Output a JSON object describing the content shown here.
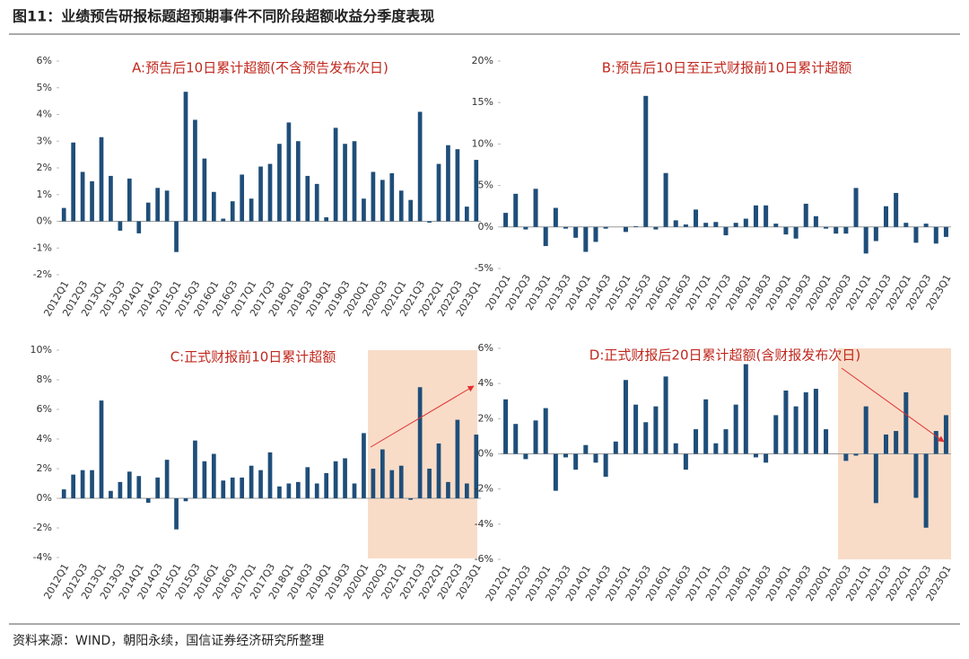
{
  "title": "图11：业绩预告研报标题超预期事件不同阶段超额收益分季度表现",
  "source": "资料来源：WIND，朝阳永续，国信证券经济研究所整理",
  "chart_data": [
    {
      "type": "bar",
      "title": "A:预告后10日累计超额(不含预告发布次日)",
      "color": "#1f4e79",
      "categories": [
        "2012Q1",
        null,
        "2012Q3",
        null,
        "2013Q1",
        null,
        "2013Q3",
        null,
        "2014Q1",
        null,
        "2014Q3",
        null,
        "2015Q1",
        null,
        "2015Q3",
        null,
        "2016Q1",
        null,
        "2016Q3",
        null,
        "2017Q1",
        null,
        "2017Q3",
        null,
        "2018Q1",
        null,
        "2018Q3",
        null,
        "2019Q1",
        null,
        "2019Q3",
        null,
        "2020Q1",
        null,
        "2020Q3",
        null,
        "2021Q1",
        null,
        "2021Q3",
        null,
        "2022Q1",
        null,
        "2022Q3",
        null,
        "2023Q1"
      ],
      "values": [
        0.5,
        2.95,
        1.85,
        1.5,
        3.15,
        1.7,
        -0.35,
        1.6,
        -0.45,
        0.7,
        1.25,
        1.15,
        -1.15,
        4.85,
        3.8,
        2.35,
        1.1,
        0.1,
        0.75,
        1.75,
        0.85,
        2.05,
        2.15,
        2.9,
        3.7,
        3.0,
        1.7,
        1.4,
        0.15,
        3.5,
        2.9,
        3.0,
        0.85,
        1.85,
        1.55,
        1.8,
        1.15,
        0.8,
        4.1,
        -0.05,
        2.15,
        2.85,
        2.7,
        0.55,
        2.3
      ],
      "ylim": [
        -2,
        6
      ],
      "yticks": [
        {
          "value": -2,
          "label": "-2%"
        },
        {
          "value": -1,
          "label": "-1%"
        },
        {
          "value": 0,
          "label": "0%"
        },
        {
          "value": 1,
          "label": "1%"
        },
        {
          "value": 2,
          "label": "2%"
        },
        {
          "value": 3,
          "label": "3%"
        },
        {
          "value": 4,
          "label": "4%"
        },
        {
          "value": 5,
          "label": "5%"
        },
        {
          "value": 6,
          "label": "6%"
        }
      ]
    },
    {
      "type": "bar",
      "title": "B:预告后10日至正式财报前10日累计超额",
      "color": "#1f4e79",
      "categories": [
        "2012Q1",
        null,
        "2012Q3",
        null,
        "2013Q1",
        null,
        "2013Q3",
        null,
        "2014Q1",
        null,
        "2014Q3",
        null,
        "2015Q1",
        null,
        "2015Q3",
        null,
        "2016Q1",
        null,
        "2016Q3",
        null,
        "2017Q1",
        null,
        "2017Q3",
        null,
        "2018Q1",
        null,
        "2018Q3",
        null,
        "2019Q1",
        null,
        "2019Q3",
        null,
        "2020Q1",
        null,
        "2020Q3",
        null,
        "2021Q1",
        null,
        "2021Q3",
        null,
        "2022Q1",
        null,
        "2022Q3",
        null,
        "2023Q1"
      ],
      "values": [
        1.7,
        4.0,
        -0.3,
        4.6,
        -2.3,
        2.3,
        -0.2,
        -1.3,
        -3.0,
        -1.8,
        -0.2,
        0,
        -0.6,
        0.1,
        15.8,
        -0.3,
        6.5,
        0.8,
        0.3,
        2.1,
        0.5,
        0.6,
        -1.0,
        0.5,
        1.0,
        2.6,
        2.6,
        0.4,
        -0.9,
        -1.4,
        2.8,
        1.3,
        -0.2,
        -0.8,
        -0.8,
        4.7,
        -3.2,
        -1.7,
        2.5,
        4.1,
        0.5,
        -1.9,
        0.4,
        -2.0,
        -1.2
      ],
      "ylim": [
        -5,
        20
      ],
      "yticks": [
        {
          "value": -5,
          "label": "-5%"
        },
        {
          "value": 0,
          "label": "0%"
        },
        {
          "value": 5,
          "label": "5%"
        },
        {
          "value": 10,
          "label": "10%"
        },
        {
          "value": 15,
          "label": "15%"
        },
        {
          "value": 20,
          "label": "20%"
        }
      ]
    },
    {
      "type": "bar",
      "title": "C:正式财报前10日累计超额",
      "color": "#1f4e79",
      "categories": [
        "2012Q1",
        null,
        "2012Q3",
        null,
        "2013Q1",
        null,
        "2013Q3",
        null,
        "2014Q1",
        null,
        "2014Q3",
        null,
        "2015Q1",
        null,
        "2015Q3",
        null,
        "2016Q1",
        null,
        "2016Q3",
        null,
        "2017Q1",
        null,
        "2017Q3",
        null,
        "2018Q1",
        null,
        "2018Q3",
        null,
        "2019Q1",
        null,
        "2019Q3",
        null,
        "2020Q1",
        null,
        "2020Q3",
        null,
        "2021Q1",
        null,
        "2021Q3",
        null,
        "2022Q1",
        null,
        "2022Q3",
        null,
        "2023Q1"
      ],
      "values": [
        0.6,
        1.6,
        1.9,
        1.9,
        6.6,
        0.5,
        1.1,
        1.8,
        1.5,
        -0.3,
        1.4,
        2.6,
        -2.1,
        -0.2,
        3.9,
        2.5,
        3.0,
        1.2,
        1.4,
        1.4,
        2.2,
        1.9,
        3.1,
        0.8,
        1.0,
        1.1,
        2.1,
        1.0,
        1.7,
        2.5,
        2.7,
        1.0,
        4.4,
        2.0,
        3.3,
        1.9,
        2.2,
        -0.1,
        7.5,
        2.0,
        3.7,
        1.1,
        5.3,
        1.0,
        4.3
      ],
      "ylim": [
        -4,
        10
      ],
      "yticks": [
        {
          "value": -4,
          "label": "-4%"
        },
        {
          "value": -2,
          "label": "-2%"
        },
        {
          "value": 0,
          "label": "0%"
        },
        {
          "value": 2,
          "label": "2%"
        },
        {
          "value": 4,
          "label": "4%"
        },
        {
          "value": 6,
          "label": "6%"
        },
        {
          "value": 8,
          "label": "8%"
        },
        {
          "value": 10,
          "label": "10%"
        }
      ]
    },
    {
      "type": "bar",
      "title": "D:正式财报后20日累计超额(含财报发布次日)",
      "color": "#1f4e79",
      "categories": [
        "2012Q1",
        null,
        "2012Q3",
        null,
        "2013Q1",
        null,
        "2013Q3",
        null,
        "2014Q1",
        null,
        "2014Q3",
        null,
        "2015Q1",
        null,
        "2015Q3",
        null,
        "2016Q1",
        null,
        "2016Q3",
        null,
        "2017Q1",
        null,
        "2017Q3",
        null,
        "2018Q1",
        null,
        "2018Q3",
        null,
        "2019Q1",
        null,
        "2019Q3",
        null,
        "2020Q1",
        null,
        "2020Q3",
        null,
        "2021Q1",
        null,
        "2021Q3",
        null,
        "2022Q1",
        null,
        "2022Q3",
        null,
        "2023Q1"
      ],
      "values": [
        3.1,
        1.7,
        -0.3,
        1.9,
        2.6,
        -2.1,
        -0.2,
        -0.9,
        0.5,
        -0.5,
        -1.3,
        0.7,
        4.2,
        2.8,
        1.8,
        2.7,
        4.4,
        0.6,
        -0.9,
        1.4,
        3.1,
        0.6,
        1.4,
        2.8,
        5.1,
        -0.2,
        -0.5,
        2.2,
        3.6,
        2.7,
        3.5,
        3.7,
        1.4,
        0,
        -0.4,
        -0.1,
        2.7,
        -2.8,
        1.1,
        1.3,
        3.5,
        -2.5,
        -4.2,
        1.3,
        2.2
      ],
      "ylim": [
        -6,
        6
      ],
      "yticks": [
        {
          "value": -6,
          "label": "-6%"
        },
        {
          "value": -4,
          "label": "-4%"
        },
        {
          "value": -2,
          "label": "-2%"
        },
        {
          "value": 0,
          "label": "0%"
        },
        {
          "value": 2,
          "label": "2%"
        },
        {
          "value": 4,
          "label": "4%"
        },
        {
          "value": 6,
          "label": "6%"
        }
      ]
    }
  ]
}
